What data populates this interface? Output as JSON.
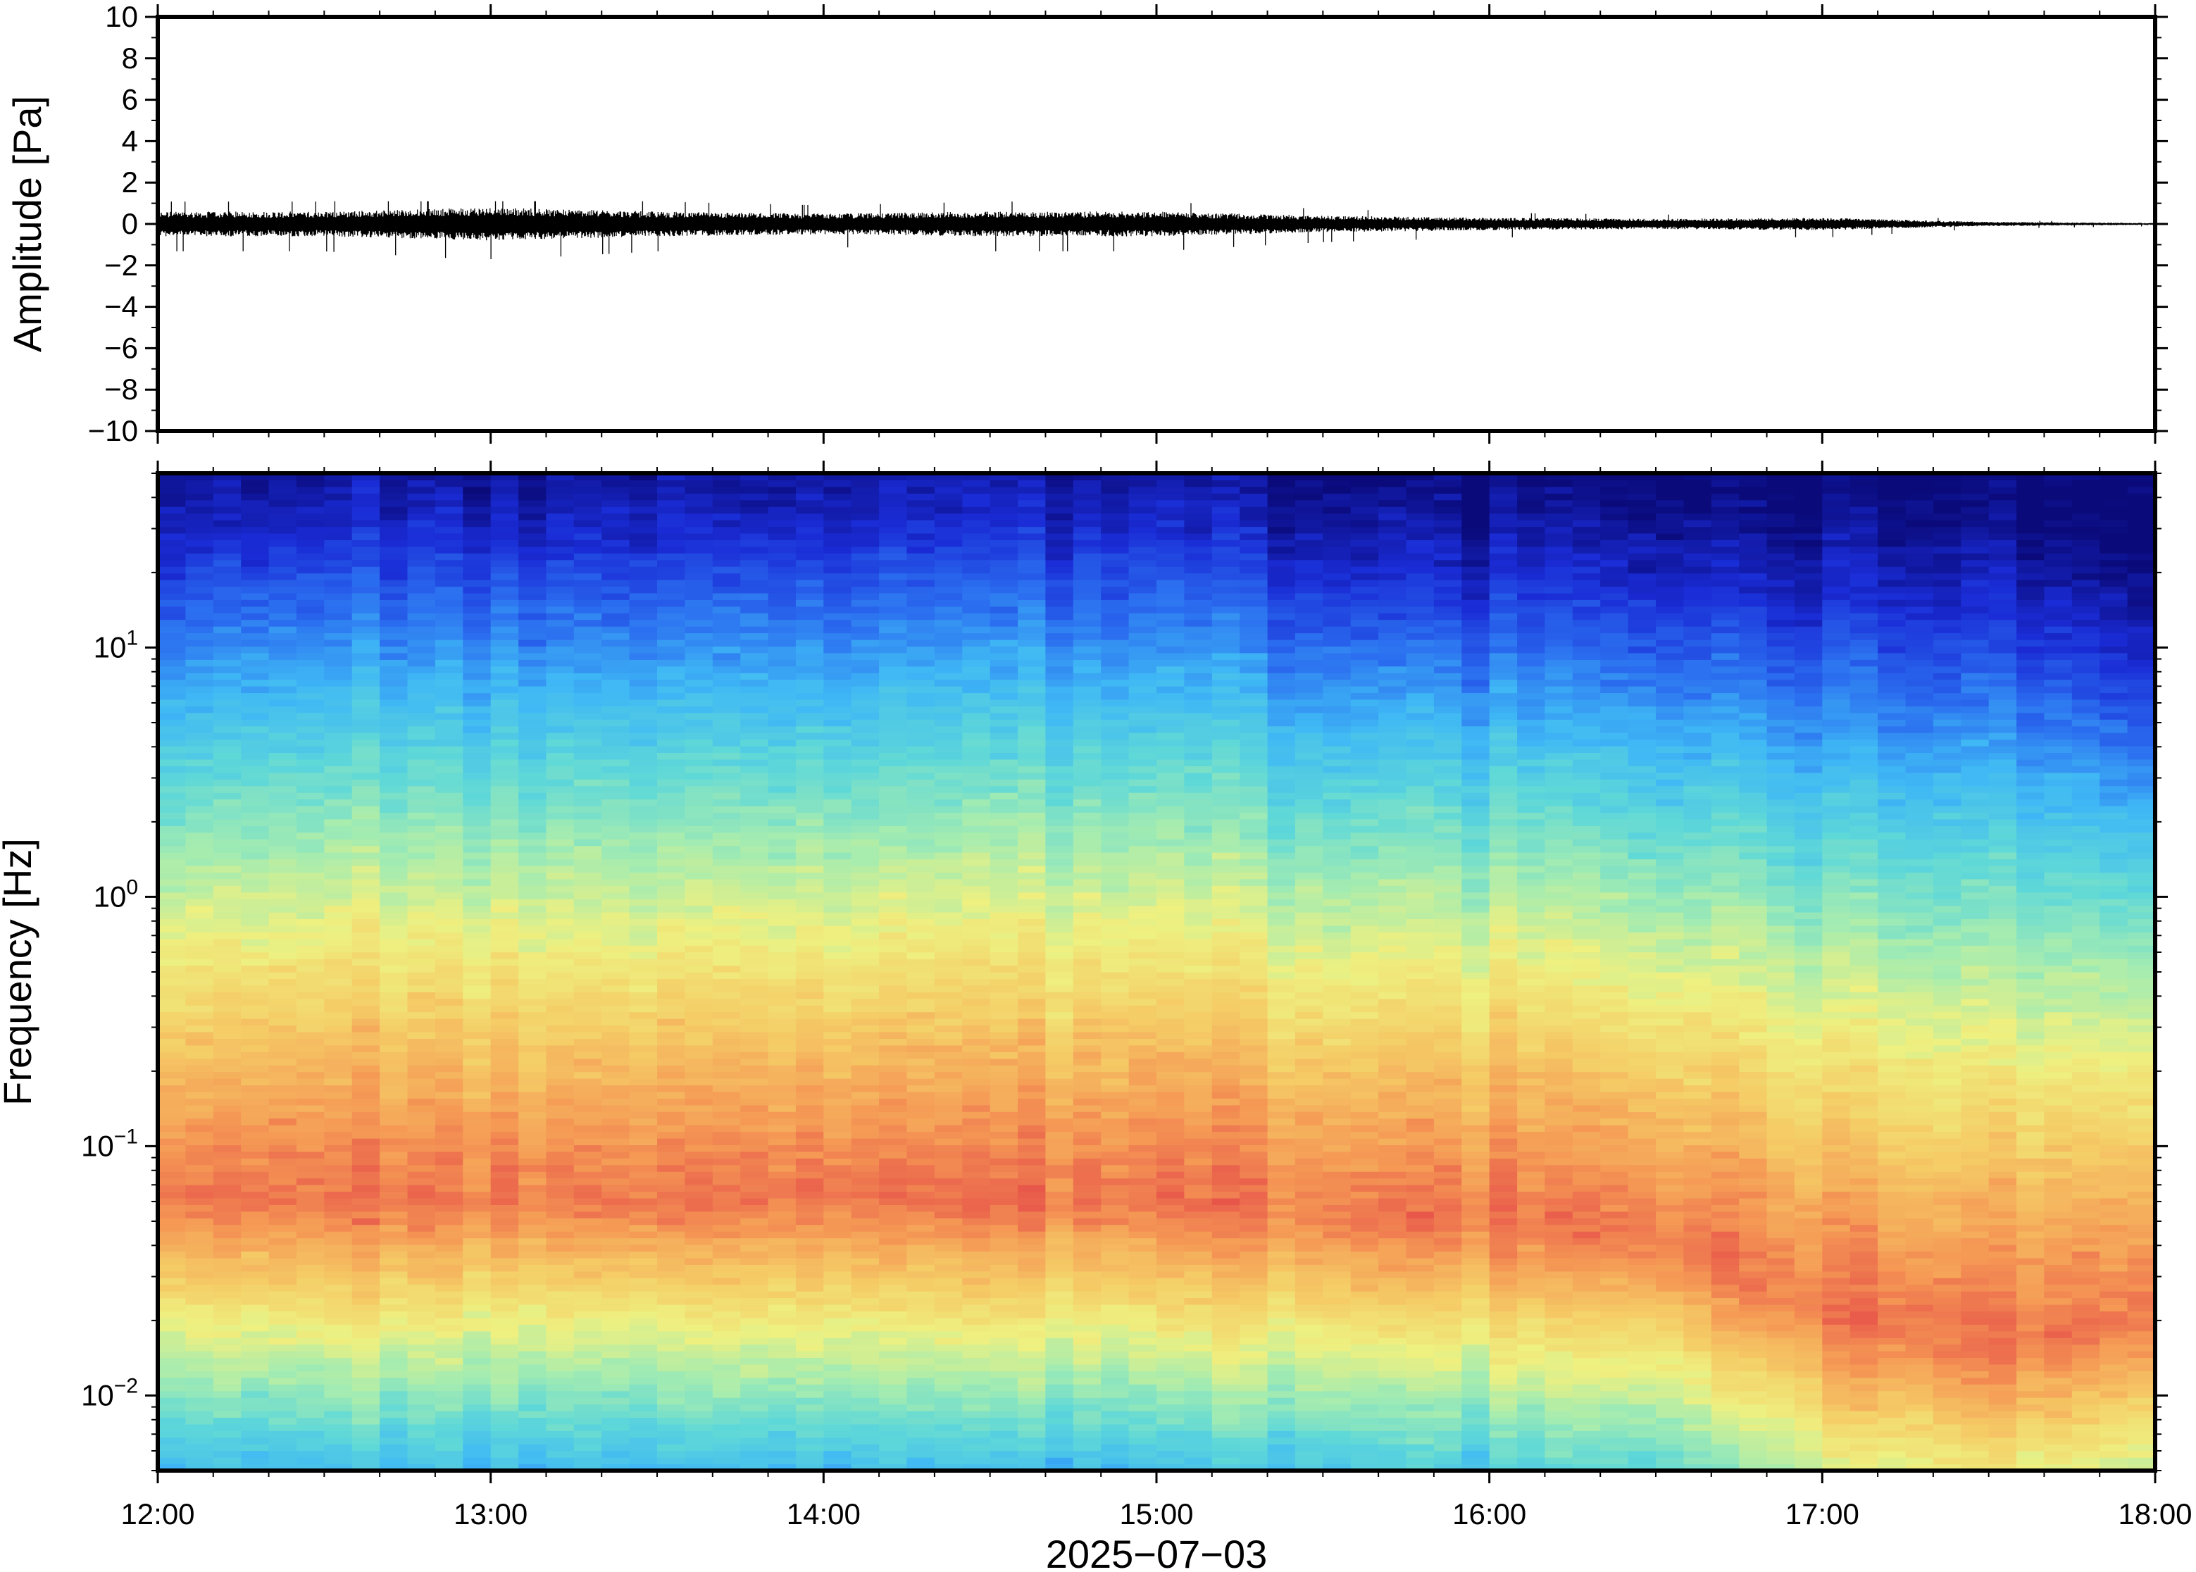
{
  "chart_data": [
    {
      "type": "line",
      "panel": "waveform",
      "ylabel": "Amplitude [Pa]",
      "ylim": [
        -10,
        10
      ],
      "yticks": [
        10,
        8,
        6,
        4,
        2,
        0,
        -2,
        -4,
        -6,
        -8,
        -10
      ],
      "ytick_labels": [
        "10",
        "8",
        "6",
        "4",
        "2",
        "0",
        "−2",
        "−4",
        "−6",
        "−8",
        "−10"
      ],
      "xlim": [
        "12:00",
        "18:00"
      ],
      "series": [
        {
          "envelope_x": [
            "12:00",
            "12:30",
            "13:00",
            "13:30",
            "14:00",
            "14:30",
            "15:00",
            "15:30",
            "16:00",
            "16:30",
            "17:00",
            "17:30",
            "18:00"
          ],
          "envelope_amplitude": [
            0.6,
            0.6,
            0.8,
            0.6,
            0.5,
            0.6,
            0.6,
            0.4,
            0.3,
            0.25,
            0.3,
            0.1,
            0.05
          ],
          "peak_min": -1.7,
          "peak_max": 1.1,
          "color": "#000000"
        }
      ]
    },
    {
      "type": "heatmap",
      "panel": "spectrogram",
      "ylabel": "Frequency [Hz]",
      "yscale": "log",
      "ylim": [
        0.005,
        50
      ],
      "ytick_labels": [
        {
          "value": 10,
          "base": "10",
          "exp": "1"
        },
        {
          "value": 1,
          "base": "10",
          "exp": "0"
        },
        {
          "value": 0.1,
          "base": "10",
          "exp": "−1"
        },
        {
          "value": 0.01,
          "base": "10",
          "exp": "−2"
        }
      ],
      "xlabel": "2025−07−03",
      "categories": [
        "12:00",
        "13:00",
        "14:00",
        "15:00",
        "16:00",
        "17:00",
        "18:00"
      ],
      "colormap": [
        "#0a0a7a",
        "#1a2cd6",
        "#2b6ff0",
        "#3fb8f5",
        "#5fd8d8",
        "#a5ecb0",
        "#eef080",
        "#f5cc66",
        "#f59a55",
        "#e8564a"
      ],
      "energy_profile": {
        "x": [
          "12:00",
          "12:30",
          "13:00",
          "13:30",
          "14:00",
          "14:30",
          "15:00",
          "15:30",
          "16:00",
          "16:30",
          "17:00",
          "17:30",
          "18:00"
        ],
        "upper_cutoff_hz": [
          28,
          30,
          32,
          30,
          30,
          32,
          30,
          22,
          20,
          19,
          16,
          15,
          9
        ],
        "peak_band_hz": [
          0.06,
          0.06,
          0.06,
          0.06,
          0.06,
          0.06,
          0.06,
          0.05,
          0.05,
          0.04,
          0.02,
          0.015,
          0.02
        ]
      }
    }
  ]
}
